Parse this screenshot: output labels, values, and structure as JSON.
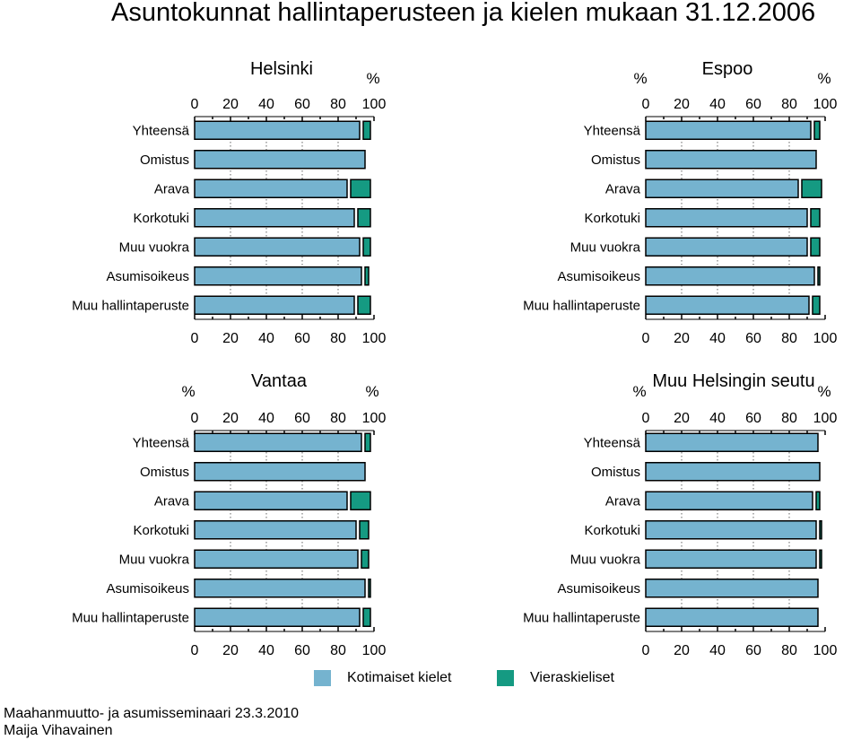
{
  "title": "Asuntokunnat hallintaperusteen ja kielen mukaan 31.12.2006",
  "colors": {
    "native": "#75b3cf",
    "foreign": "#159a82",
    "text": "#000000"
  },
  "chart_data": [
    {
      "type": "bar",
      "title": "Helsinki",
      "percent_labels": [
        "",
        "%"
      ],
      "categories": [
        "Yhteensä",
        "Omistus",
        "Arava",
        "Korkotuki",
        "Muu vuokra",
        "Asumisoikeus",
        "Muu hallintaperuste"
      ],
      "series": [
        {
          "name": "Kotimaiset kielet",
          "values": [
            92,
            95,
            85,
            89,
            92,
            93,
            89
          ]
        },
        {
          "name": "Vieraskieliset",
          "values": [
            4,
            0,
            11,
            7,
            4,
            2,
            7
          ]
        }
      ],
      "xlim": [
        0,
        100
      ],
      "xticks": [
        "0",
        "20",
        "40",
        "60",
        "80",
        "100"
      ]
    },
    {
      "type": "bar",
      "title": "Espoo",
      "percent_labels": [
        "%",
        "%"
      ],
      "categories": [
        "Yhteensä",
        "Omistus",
        "Arava",
        "Korkotuki",
        "Muu vuokra",
        "Asumisoikeus",
        "Muu hallintaperuste"
      ],
      "series": [
        {
          "name": "Kotimaiset kielet",
          "values": [
            92,
            95,
            85,
            90,
            90,
            94,
            91
          ]
        },
        {
          "name": "Vieraskieliset",
          "values": [
            3,
            0,
            11,
            5,
            5,
            1,
            4
          ]
        }
      ],
      "xlim": [
        0,
        100
      ],
      "xticks": [
        "0",
        "20",
        "40",
        "60",
        "80",
        "100"
      ]
    },
    {
      "type": "bar",
      "title": "Vantaa",
      "percent_labels": [
        "%",
        "%"
      ],
      "categories": [
        "Yhteensä",
        "Omistus",
        "Arava",
        "Korkotuki",
        "Muu vuokra",
        "Asumisoikeus",
        "Muu hallintaperuste"
      ],
      "series": [
        {
          "name": "Kotimaiset kielet",
          "values": [
            93,
            95,
            85,
            90,
            91,
            95,
            92
          ]
        },
        {
          "name": "Vieraskieliset",
          "values": [
            3,
            0,
            11,
            5,
            4,
            1,
            4
          ]
        }
      ],
      "xlim": [
        0,
        100
      ],
      "xticks": [
        "0",
        "20",
        "40",
        "60",
        "80",
        "100"
      ]
    },
    {
      "type": "bar",
      "title": "Muu Helsingin seutu",
      "percent_labels": [
        "%",
        "%"
      ],
      "categories": [
        "Yhteensä",
        "Omistus",
        "Arava",
        "Korkotuki",
        "Muu vuokra",
        "Asumisoikeus",
        "Muu hallintaperuste"
      ],
      "series": [
        {
          "name": "Kotimaiset kielet",
          "values": [
            96,
            97,
            93,
            95,
            95,
            96,
            96
          ]
        },
        {
          "name": "Vieraskieliset",
          "values": [
            0,
            0,
            2,
            1,
            1,
            0,
            0
          ]
        }
      ],
      "xlim": [
        0,
        100
      ],
      "xticks": [
        "0",
        "20",
        "40",
        "60",
        "80",
        "100"
      ]
    }
  ],
  "legend": [
    {
      "label": "Kotimaiset kielet",
      "color": "#75b3cf"
    },
    {
      "label": "Vieraskieliset",
      "color": "#159a82"
    }
  ],
  "footer": {
    "line1": "Maahanmuutto- ja asumisseminaari 23.3.2010",
    "line2": "Maija Vihavainen"
  }
}
